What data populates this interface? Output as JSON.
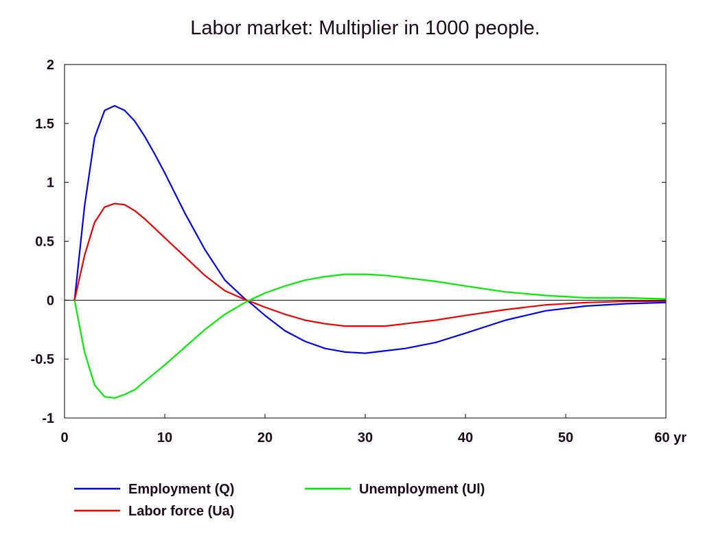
{
  "chart_data": {
    "type": "line",
    "title": "Labor market: Multiplier in 1000 people.",
    "xlabel": "",
    "ylabel": "",
    "x_unit": "yr",
    "xlim": [
      0,
      60
    ],
    "ylim": [
      -1,
      2
    ],
    "x_ticks": [
      {
        "value": 0,
        "label": "0"
      },
      {
        "value": 10,
        "label": "10"
      },
      {
        "value": 20,
        "label": "20"
      },
      {
        "value": 30,
        "label": "30"
      },
      {
        "value": 40,
        "label": "40"
      },
      {
        "value": 50,
        "label": "50"
      },
      {
        "value": 60,
        "label": "60 yr"
      }
    ],
    "y_ticks": [
      {
        "value": 2,
        "label": "2"
      },
      {
        "value": 1.5,
        "label": "1.5"
      },
      {
        "value": 1,
        "label": "1"
      },
      {
        "value": 0.5,
        "label": "0.5"
      },
      {
        "value": 0,
        "label": "0"
      },
      {
        "value": -0.5,
        "label": "-0.5"
      },
      {
        "value": -1,
        "label": "-1"
      }
    ],
    "grid": false,
    "zero_line": true,
    "legend_position": "bottom",
    "x": [
      1,
      2,
      3,
      4,
      5,
      6,
      7,
      8,
      9,
      10,
      12,
      14,
      16,
      18,
      18.5,
      20,
      22,
      24,
      26,
      28,
      30,
      32,
      34,
      37,
      40,
      44,
      48,
      52,
      56,
      60
    ],
    "series": [
      {
        "name": "Employment (Q)",
        "color": "#0000ee",
        "values": [
          0,
          0.8,
          1.38,
          1.61,
          1.65,
          1.61,
          1.52,
          1.39,
          1.24,
          1.08,
          0.74,
          0.43,
          0.17,
          0.01,
          -0.02,
          -0.13,
          -0.26,
          -0.35,
          -0.41,
          -0.44,
          -0.45,
          -0.43,
          -0.41,
          -0.36,
          -0.28,
          -0.17,
          -0.09,
          -0.05,
          -0.03,
          -0.02
        ]
      },
      {
        "name": "Labor force (Ua)",
        "color": "#ee0000",
        "values": [
          0,
          0.38,
          0.66,
          0.79,
          0.82,
          0.81,
          0.76,
          0.69,
          0.61,
          0.53,
          0.37,
          0.21,
          0.08,
          0.005,
          -0.01,
          -0.06,
          -0.12,
          -0.17,
          -0.2,
          -0.22,
          -0.22,
          -0.22,
          -0.2,
          -0.17,
          -0.13,
          -0.08,
          -0.04,
          -0.02,
          -0.01,
          -0.01
        ]
      },
      {
        "name": "Unemployment (Ul)",
        "color": "#00ee00",
        "values": [
          0,
          -0.44,
          -0.72,
          -0.82,
          -0.83,
          -0.8,
          -0.76,
          -0.69,
          -0.62,
          -0.55,
          -0.4,
          -0.25,
          -0.12,
          -0.02,
          0.0,
          0.06,
          0.12,
          0.17,
          0.2,
          0.22,
          0.22,
          0.21,
          0.19,
          0.16,
          0.12,
          0.07,
          0.04,
          0.02,
          0.02,
          0.01
        ]
      }
    ]
  }
}
